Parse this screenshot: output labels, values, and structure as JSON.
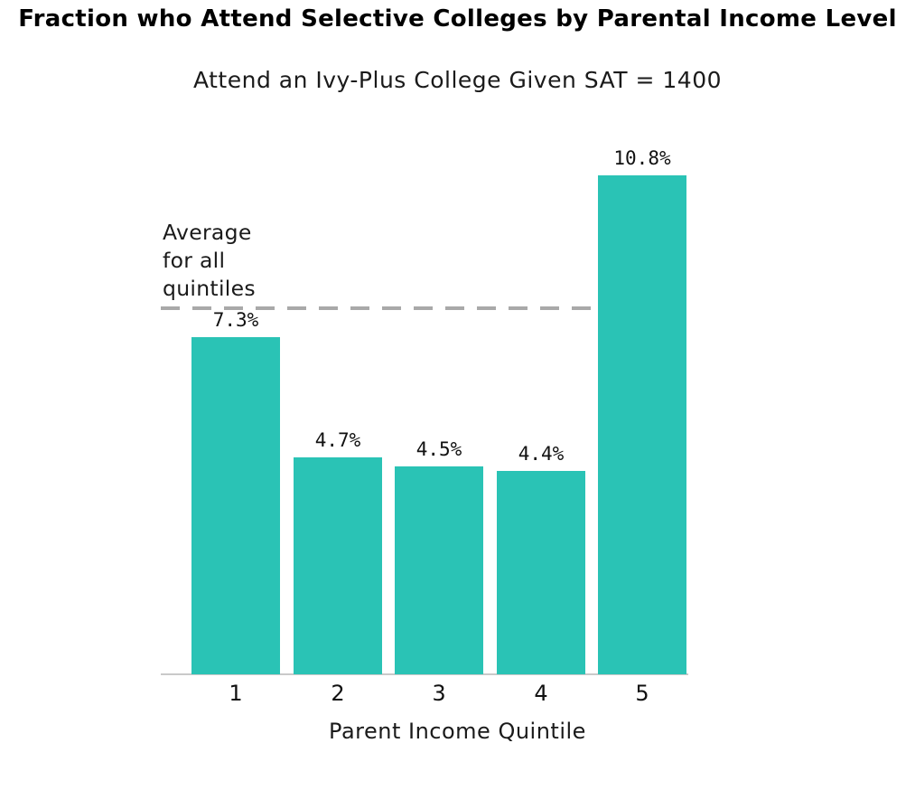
{
  "chart_data": {
    "type": "bar",
    "title": "Fraction who Attend Selective Colleges by Parental Income Level",
    "subtitle": "Attend an Ivy-Plus College Given SAT = 1400",
    "xlabel": "Parent Income Quintile",
    "categories": [
      "1",
      "2",
      "3",
      "4",
      "5"
    ],
    "values": [
      7.3,
      4.7,
      4.5,
      4.4,
      10.8
    ],
    "value_labels": [
      "7.3%",
      "4.7%",
      "4.5%",
      "4.4%",
      "10.8%"
    ],
    "bar_color": "#2ac3b5",
    "ylim": [
      0,
      11.6
    ],
    "grid": false,
    "legend": "none",
    "average_line": {
      "label": "Average for all quintiles",
      "label_lines": [
        "Average",
        "for all",
        "quintiles"
      ],
      "value_pct": 7.9,
      "color": "#a9a9a9",
      "style": "dashed"
    },
    "axis_line_color": "#c9c9c9"
  }
}
